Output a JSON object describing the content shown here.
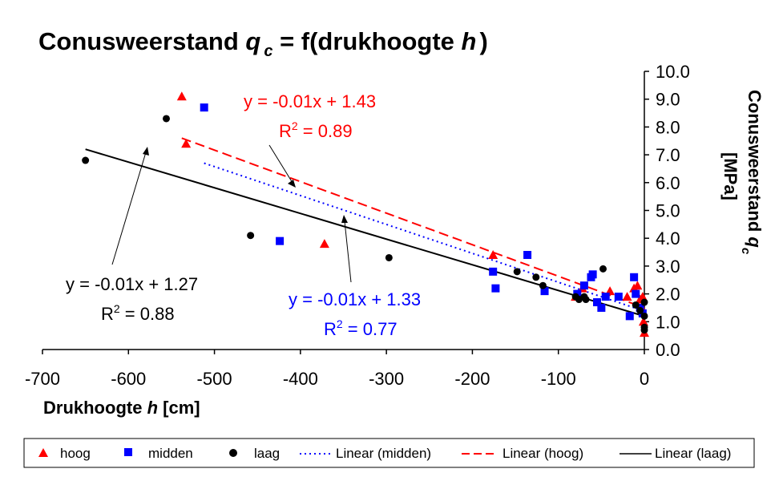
{
  "chart_data": {
    "type": "scatter",
    "title": {
      "main": "Conusweerstand ",
      "var": "q",
      "sub": "c",
      "mid": " = f(drukhoogte ",
      "var2": "h",
      "end": ")"
    },
    "xlabel": {
      "main": "Drukhoogte ",
      "var": "h",
      "unit": "  [cm]"
    },
    "ylabel": {
      "main": "Conusweerstand  ",
      "var": "q",
      "sub": "c",
      "unit": "[MPa]"
    },
    "xlim": [
      -700,
      0
    ],
    "ylim": [
      0,
      10
    ],
    "x_ticks": [
      "-700",
      "-600",
      "-500",
      "-400",
      "-300",
      "-200",
      "-100",
      "0"
    ],
    "y_ticks": [
      "0.0",
      "1.0",
      "2.0",
      "3.0",
      "4.0",
      "5.0",
      "6.0",
      "7.0",
      "8.0",
      "9.0",
      "10.0"
    ],
    "grid": false,
    "legend_position": "bottom",
    "series": [
      {
        "name": "hoog",
        "marker": "triangle",
        "color": "#ff0000",
        "x": [
          -538,
          -533,
          -372,
          -176,
          -80,
          -72,
          -40,
          -20,
          -12,
          -8,
          -5,
          -3,
          -2,
          -1,
          0
        ],
        "y": [
          9.1,
          7.4,
          3.8,
          3.4,
          1.9,
          2.2,
          2.1,
          1.9,
          2.2,
          2.3,
          1.8,
          1.5,
          1.9,
          1.0,
          0.6
        ]
      },
      {
        "name": "midden",
        "marker": "square",
        "color": "#0000ff",
        "x": [
          -512,
          -424,
          -176,
          -173,
          -136,
          -116,
          -78,
          -70,
          -62,
          -60,
          -55,
          -50,
          -45,
          -30,
          -17,
          -12,
          -10,
          -5,
          -2
        ],
        "y": [
          8.7,
          3.9,
          2.8,
          2.2,
          3.4,
          2.1,
          2.0,
          2.3,
          2.6,
          2.7,
          1.7,
          1.5,
          1.9,
          1.9,
          1.2,
          2.6,
          2.0,
          1.5,
          1.3
        ]
      },
      {
        "name": "laag",
        "marker": "circle",
        "color": "#000000",
        "x": [
          -650,
          -556,
          -458,
          -297,
          -148,
          -126,
          -118,
          -80,
          -76,
          -70,
          -68,
          -48,
          -10,
          -5,
          0,
          0,
          0,
          0
        ],
        "y": [
          6.8,
          8.3,
          4.1,
          3.3,
          2.8,
          2.6,
          2.3,
          1.9,
          1.8,
          1.9,
          1.8,
          2.9,
          1.6,
          1.4,
          1.7,
          1.2,
          0.8,
          0.7
        ]
      }
    ],
    "trendlines": [
      {
        "name": "Linear (midden)",
        "series": "midden",
        "style": "dotted",
        "color": "#0000ff",
        "equation": "y = -0.01x + 1.33",
        "r2_prefix": "R",
        "r2_value": " = 0.77",
        "x": [
          -512,
          -2
        ],
        "y": [
          6.7,
          1.4
        ]
      },
      {
        "name": "Linear (hoog)",
        "series": "hoog",
        "style": "dashed",
        "color": "#ff0000",
        "equation": "y = -0.01x + 1.43",
        "r2_prefix": "R",
        "r2_value": " = 0.89",
        "x": [
          -538,
          0
        ],
        "y": [
          7.6,
          1.5
        ]
      },
      {
        "name": "Linear (laag)",
        "series": "laag",
        "style": "solid",
        "color": "#000000",
        "equation": "y = -0.01x + 1.27",
        "r2_prefix": "R",
        "r2_value": " = 0.88",
        "x": [
          -650,
          0
        ],
        "y": [
          7.2,
          1.2
        ]
      }
    ]
  }
}
